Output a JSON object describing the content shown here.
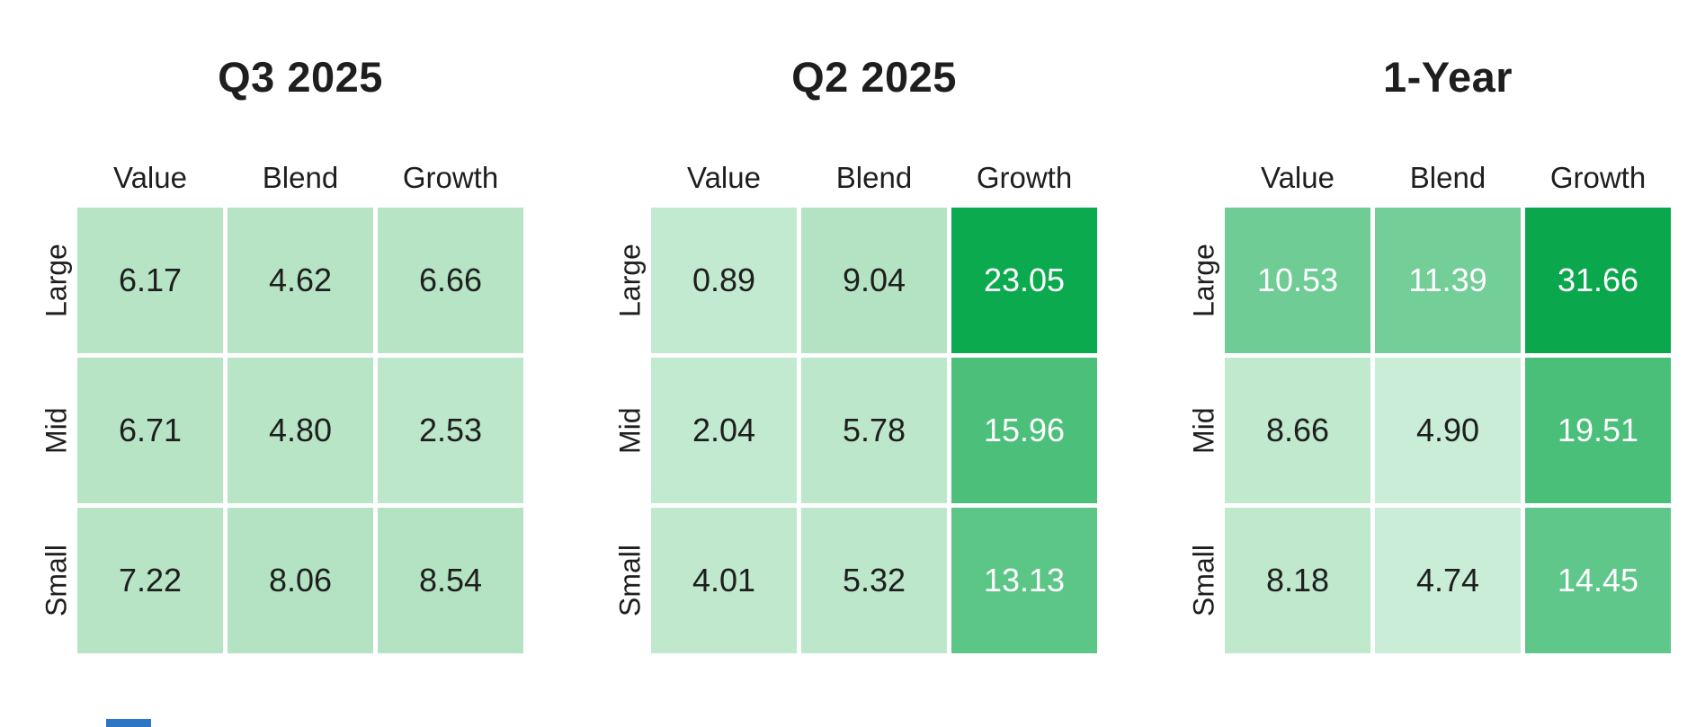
{
  "palette": {
    "light_green": "#b6e4c5",
    "medium_green": "#5cc687",
    "dark_green": "#0baa4f",
    "text_dark": "#1e1e1e",
    "text_light": "#ffffff",
    "blue_bar": "#2e75c4"
  },
  "chart_data": [
    {
      "type": "heatmap",
      "title": "Q3 2025",
      "columns": [
        "Value",
        "Blend",
        "Growth"
      ],
      "rows": [
        "Large",
        "Mid",
        "Small"
      ],
      "values": [
        [
          6.17,
          4.62,
          6.66
        ],
        [
          6.71,
          4.8,
          2.53
        ],
        [
          7.22,
          8.06,
          8.54
        ]
      ],
      "cells": [
        {
          "text": "6.17",
          "bg": "#b6e4c5",
          "fg": "#1e1e1e"
        },
        {
          "text": "4.62",
          "bg": "#b6e4c5",
          "fg": "#1e1e1e"
        },
        {
          "text": "6.66",
          "bg": "#b6e4c5",
          "fg": "#1e1e1e"
        },
        {
          "text": "6.71",
          "bg": "#b6e4c5",
          "fg": "#1e1e1e"
        },
        {
          "text": "4.80",
          "bg": "#b8e5c6",
          "fg": "#1e1e1e"
        },
        {
          "text": "2.53",
          "bg": "#bce7ca",
          "fg": "#1e1e1e"
        },
        {
          "text": "7.22",
          "bg": "#b6e4c5",
          "fg": "#1e1e1e"
        },
        {
          "text": "8.06",
          "bg": "#b4e3c3",
          "fg": "#1e1e1e"
        },
        {
          "text": "8.54",
          "bg": "#b4e3c3",
          "fg": "#1e1e1e"
        }
      ]
    },
    {
      "type": "heatmap",
      "title": "Q2 2025",
      "columns": [
        "Value",
        "Blend",
        "Growth"
      ],
      "rows": [
        "Large",
        "Mid",
        "Small"
      ],
      "values": [
        [
          0.89,
          9.04,
          23.05
        ],
        [
          2.04,
          5.78,
          15.96
        ],
        [
          4.01,
          5.32,
          13.13
        ]
      ],
      "cells": [
        {
          "text": "0.89",
          "bg": "#c2ead0",
          "fg": "#1e1e1e"
        },
        {
          "text": "9.04",
          "bg": "#b4e3c3",
          "fg": "#1e1e1e"
        },
        {
          "text": "23.05",
          "bg": "#0baa4f",
          "fg": "#ffffff"
        },
        {
          "text": "2.04",
          "bg": "#c2ead0",
          "fg": "#1e1e1e"
        },
        {
          "text": "5.78",
          "bg": "#bce7ca",
          "fg": "#1e1e1e"
        },
        {
          "text": "15.96",
          "bg": "#4cc07b",
          "fg": "#ffffff"
        },
        {
          "text": "4.01",
          "bg": "#bfe8cd",
          "fg": "#1e1e1e"
        },
        {
          "text": "5.32",
          "bg": "#bce7ca",
          "fg": "#1e1e1e"
        },
        {
          "text": "13.13",
          "bg": "#5cc687",
          "fg": "#ffffff"
        }
      ]
    },
    {
      "type": "heatmap",
      "title": "1-Year",
      "columns": [
        "Value",
        "Blend",
        "Growth"
      ],
      "rows": [
        "Large",
        "Mid",
        "Small"
      ],
      "values": [
        [
          10.53,
          11.39,
          31.66
        ],
        [
          8.66,
          4.9,
          19.51
        ],
        [
          8.18,
          4.74,
          14.45
        ]
      ],
      "cells": [
        {
          "text": "10.53",
          "bg": "#6ecc94",
          "fg": "#ffffff"
        },
        {
          "text": "11.39",
          "bg": "#74ce98",
          "fg": "#ffffff"
        },
        {
          "text": "31.66",
          "bg": "#0aa74d",
          "fg": "#ffffff"
        },
        {
          "text": "8.66",
          "bg": "#c0e9ce",
          "fg": "#1e1e1e"
        },
        {
          "text": "4.90",
          "bg": "#c9edd6",
          "fg": "#1e1e1e"
        },
        {
          "text": "19.51",
          "bg": "#49bf79",
          "fg": "#ffffff"
        },
        {
          "text": "8.18",
          "bg": "#bfe8cd",
          "fg": "#1e1e1e"
        },
        {
          "text": "4.74",
          "bg": "#c9edd6",
          "fg": "#1e1e1e"
        },
        {
          "text": "14.45",
          "bg": "#5fc789",
          "fg": "#ffffff"
        }
      ]
    }
  ]
}
